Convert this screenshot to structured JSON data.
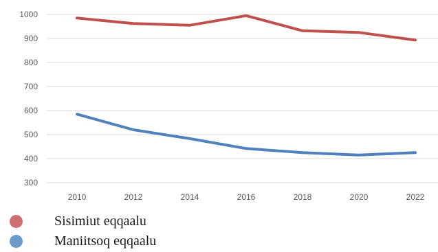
{
  "chart_data": {
    "type": "line",
    "x": [
      "2010",
      "2012",
      "2014",
      "2016",
      "2018",
      "2020",
      "2022"
    ],
    "ylim": [
      300,
      1000
    ],
    "yticks": [
      1000,
      900,
      800,
      700,
      600,
      500,
      400,
      300
    ],
    "grid": true,
    "legend_position": "bottom-left",
    "series": [
      {
        "name": "Sisimiut eqqaalu",
        "color": "#c0504d",
        "values": [
          985,
          962,
          955,
          995,
          932,
          925,
          893
        ]
      },
      {
        "name": "Maniitsoq eqqaalu",
        "color": "#4f81bd",
        "values": [
          585,
          520,
          483,
          442,
          425,
          415,
          425
        ]
      }
    ]
  },
  "legend": {
    "marker_colors": [
      "#cd7072",
      "#6f9bcb"
    ]
  }
}
